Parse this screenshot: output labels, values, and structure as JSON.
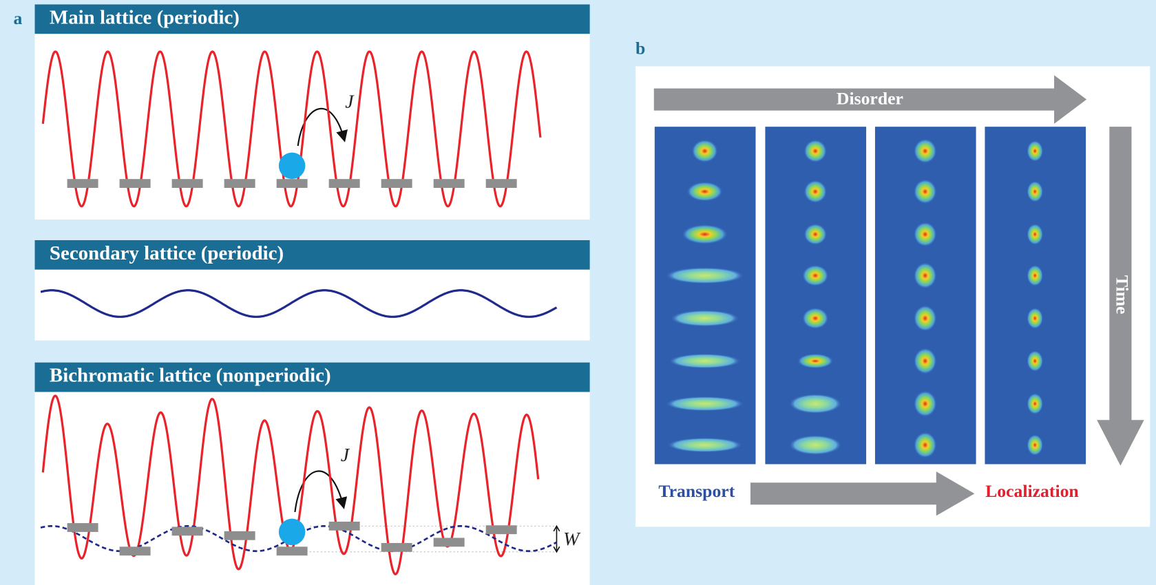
{
  "panel_a": {
    "label": "a",
    "main": {
      "title": "Main lattice (periodic)",
      "hop_label": "J"
    },
    "secondary": {
      "title": "Secondary lattice (periodic)"
    },
    "bichromatic": {
      "title": "Bichromatic lattice (nonperiodic)",
      "hop_label": "J",
      "disorder_label": "W"
    }
  },
  "panel_b": {
    "label": "b",
    "disorder_axis": "Disorder",
    "time_axis": "Time",
    "transport": "Transport",
    "localization": "Localization"
  }
}
